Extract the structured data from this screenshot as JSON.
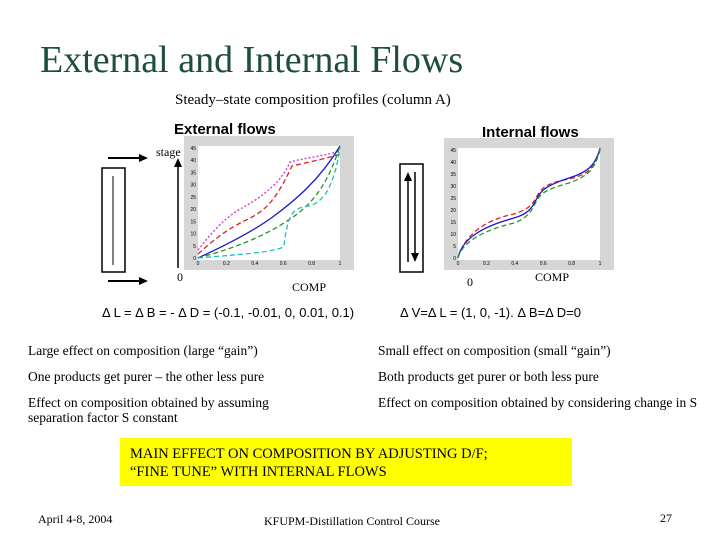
{
  "slide": {
    "title": "External and Internal Flows",
    "subtitle": "Steady–state composition profiles (column A)"
  },
  "external": {
    "label": "External flows",
    "stage_label": "stage",
    "zero_label": "0",
    "comp_label": "COMP",
    "equation": "Δ L = Δ B = - Δ D = (-0.1, -0.01, 0, 0.01, 0.1)",
    "y_ticks": [
      "45",
      "40",
      "35",
      "30",
      "25",
      "20",
      "15",
      "10",
      "5",
      "0"
    ],
    "x_ticks": [
      "0",
      "0.2",
      "0.4",
      "0.6",
      "0.8",
      "1"
    ]
  },
  "internal": {
    "label": "Internal flows",
    "zero_label": "0",
    "comp_label": "COMP",
    "equation": "Δ V=Δ L = (1, 0, -1).   Δ B=Δ D=0",
    "y_ticks": [
      "45",
      "40",
      "35",
      "30",
      "25",
      "20",
      "15",
      "10",
      "5",
      "0"
    ],
    "x_ticks": [
      "0",
      "0.2",
      "0.4",
      "0.6",
      "0.8",
      "1"
    ]
  },
  "comparison": {
    "left": [
      "Large effect on composition (large “gain”)",
      "One products get purer – the other less pure",
      "Effect on composition obtained by assuming separation factor S  constant"
    ],
    "right": [
      "Small effect on composition (small “gain”)",
      "Both products get purer or both less pure",
      "Effect on composition obtained by considering change in S"
    ]
  },
  "highlight": {
    "line1": "MAIN EFFECT ON COMPOSITION BY ADJUSTING D/F;",
    "line2": "“FINE TUNE” WITH INTERNAL FLOWS",
    "color": "#ffff00"
  },
  "footer": {
    "date": "April 4-8, 2004",
    "course": "KFUPM-Distillation Control Course",
    "page": "27"
  },
  "colors": {
    "title": "#1f4e3d",
    "magenta": "#cc33cc",
    "red": "#dd2222",
    "blue": "#1a1acc",
    "green": "#229922",
    "cyan": "#22bbbb"
  }
}
